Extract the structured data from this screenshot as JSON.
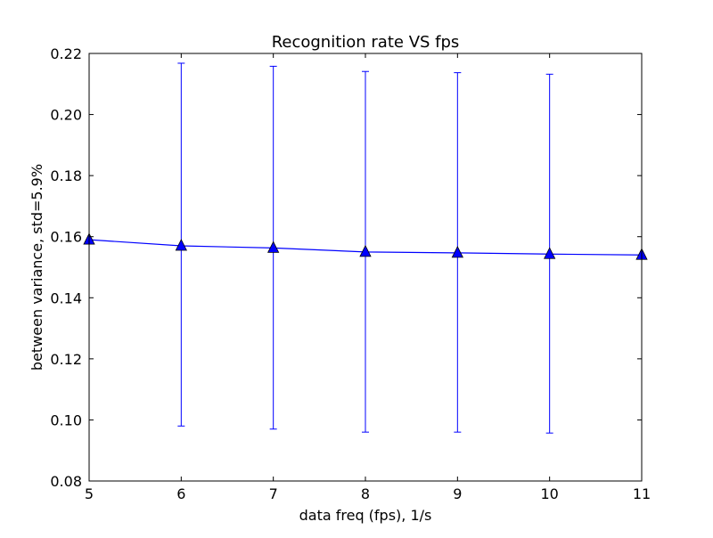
{
  "chart_data": {
    "type": "line",
    "title": "Recognition rate VS fps",
    "xlabel": "data freq (fps), 1/s",
    "ylabel": "between variance, std=5.9%",
    "xlim": [
      5,
      11
    ],
    "ylim": [
      0.08,
      0.22
    ],
    "xticks": [
      5,
      6,
      7,
      8,
      9,
      10,
      11
    ],
    "xtick_labels": [
      "5",
      "6",
      "7",
      "8",
      "9",
      "10",
      "11"
    ],
    "yticks": [
      0.08,
      0.1,
      0.12,
      0.14,
      0.16,
      0.18,
      0.2,
      0.22
    ],
    "ytick_labels": [
      "0.08",
      "0.10",
      "0.12",
      "0.14",
      "0.16",
      "0.18",
      "0.20",
      "0.22"
    ],
    "grid": false,
    "series": [
      {
        "color": "#0000ff",
        "marker": "triangle",
        "x": [
          5,
          6,
          7,
          8,
          9,
          10,
          11
        ],
        "y": [
          0.159,
          0.157,
          0.1563,
          0.155,
          0.1547,
          0.1543,
          0.154
        ],
        "err_low": [
          0.159,
          0.098,
          0.097,
          0.096,
          0.096,
          0.0957,
          0.154
        ],
        "err_high": [
          0.159,
          0.2168,
          0.2158,
          0.2141,
          0.2137,
          0.2132,
          0.154
        ]
      }
    ]
  }
}
